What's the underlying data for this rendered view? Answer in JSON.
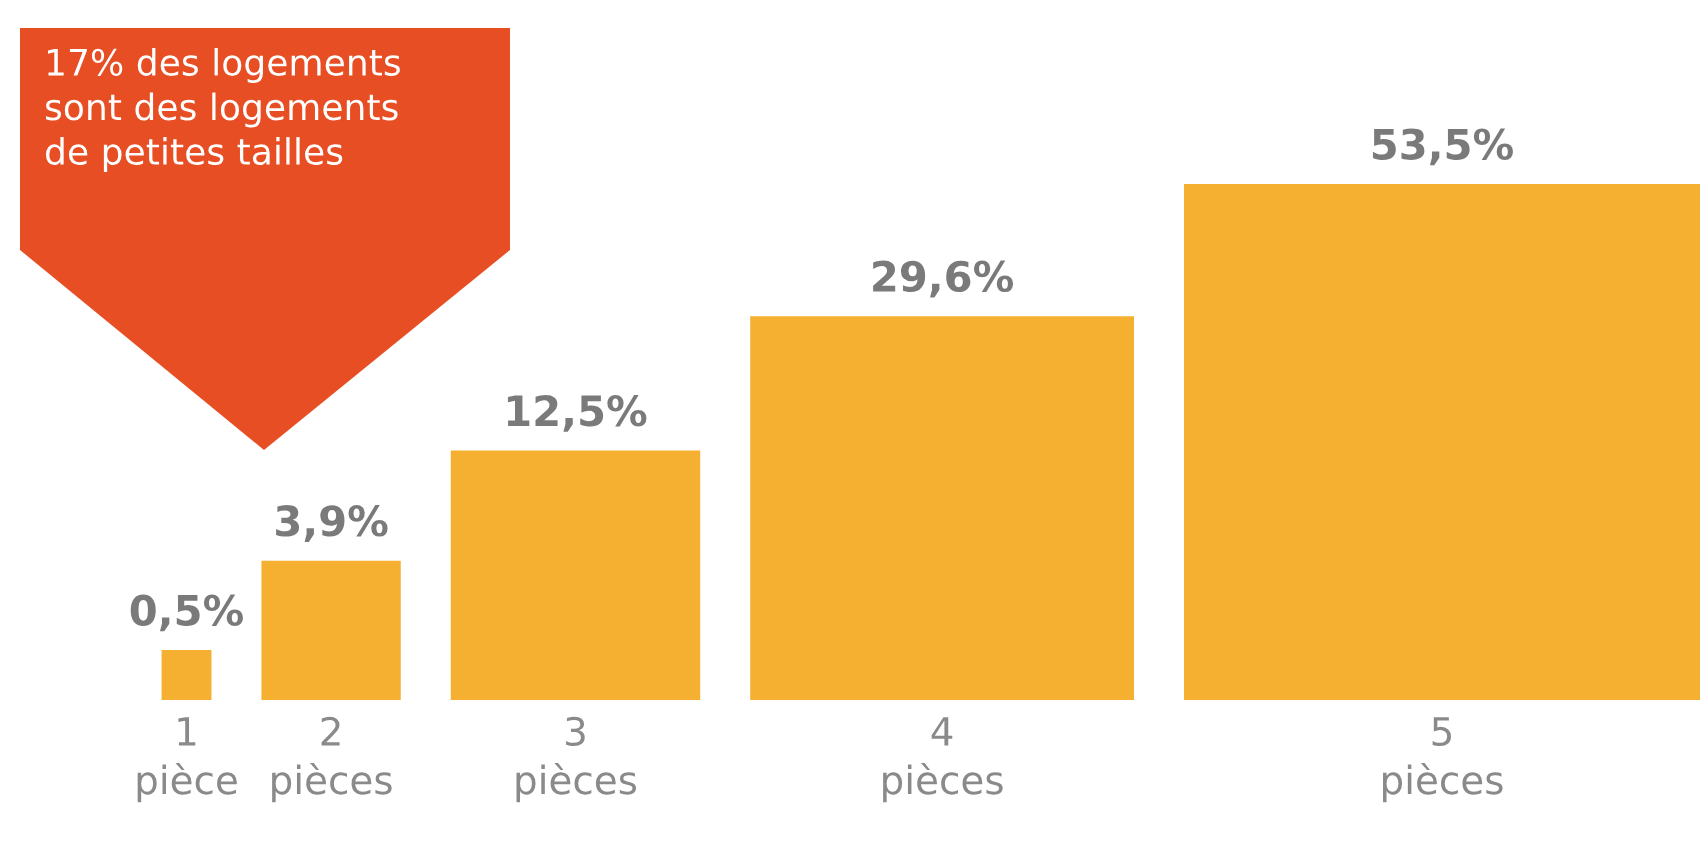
{
  "chart_data": {
    "type": "other",
    "categories": [
      "1\npièce",
      "2\npièces",
      "3\npièces",
      "4\npièces",
      "5\npièces"
    ],
    "values": [
      0.5,
      3.9,
      12.5,
      29.6,
      53.5
    ],
    "value_labels": [
      "0,5%",
      "3,9%",
      "12,5%",
      "29,6%",
      "53,5%"
    ],
    "color": "#f5b031",
    "annotations": [
      "17% des logements\nsont des logements\nde petites tailles"
    ]
  }
}
